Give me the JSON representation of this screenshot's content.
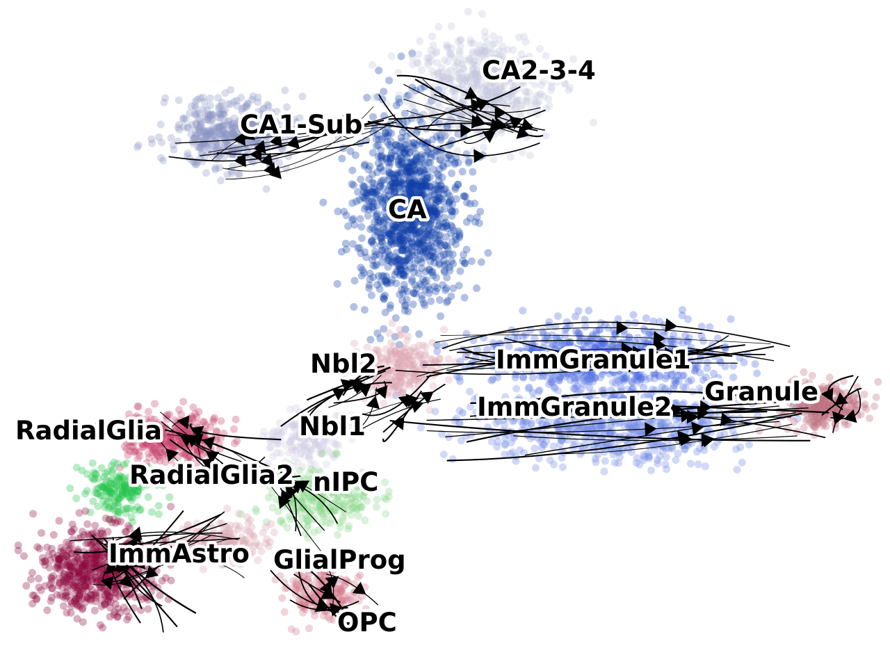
{
  "chart_data": {
    "type": "scatter",
    "description_kind": "embedding scatter with velocity streamlines",
    "grid": false,
    "axes_visible": false,
    "legend": "on data",
    "clusters": [
      {
        "name": "CA",
        "color": "#0e3fa8",
        "center": [
          590,
          300
        ],
        "spread": [
          70,
          120
        ],
        "n": 1100
      },
      {
        "name": "CA1-Sub",
        "color": "#8d96c4",
        "center": [
          330,
          190
        ],
        "spread": [
          80,
          45
        ],
        "n": 420
      },
      {
        "name": "CA2-3-4",
        "color": "#c3c6dd",
        "center": [
          690,
          130
        ],
        "spread": [
          90,
          70
        ],
        "n": 550
      },
      {
        "name": "ImmGranule1",
        "color": "#4a6be0",
        "center": [
          860,
          515
        ],
        "spread": [
          150,
          45
        ],
        "n": 700
      },
      {
        "name": "ImmGranule2",
        "color": "#6f88e6",
        "center": [
          880,
          610
        ],
        "spread": [
          170,
          50
        ],
        "n": 700
      },
      {
        "name": "Granule",
        "color": "#bf6f7e",
        "center": [
          1185,
          585
        ],
        "spread": [
          50,
          30
        ],
        "n": 260
      },
      {
        "name": "Nbl2",
        "color": "#dca4b0",
        "center": [
          570,
          530
        ],
        "spread": [
          55,
          40
        ],
        "n": 250
      },
      {
        "name": "Nbl1",
        "color": "#d0cee2",
        "center": [
          440,
          630
        ],
        "spread": [
          50,
          35
        ],
        "n": 180
      },
      {
        "name": "nIPC",
        "color": "#88d88a",
        "center": [
          460,
          720
        ],
        "spread": [
          70,
          40
        ],
        "n": 260
      },
      {
        "name": "RadialGlia",
        "color": "#c8456c",
        "center": [
          250,
          630
        ],
        "spread": [
          70,
          35
        ],
        "n": 330
      },
      {
        "name": "RadialGlia2",
        "color": "#22c44a",
        "center": [
          170,
          705
        ],
        "spread": [
          45,
          30
        ],
        "n": 170
      },
      {
        "name": "ImmAstro",
        "color": "#8c0a3e",
        "center": [
          140,
          820
        ],
        "spread": [
          75,
          55
        ],
        "n": 600
      },
      {
        "name": "GlialProg",
        "color": "#d9a4b2",
        "center": [
          320,
          780
        ],
        "spread": [
          60,
          30
        ],
        "n": 160
      },
      {
        "name": "OPC",
        "color": "#d47a8d",
        "center": [
          460,
          850
        ],
        "spread": [
          50,
          35
        ],
        "n": 210
      }
    ],
    "labels": [
      {
        "text": "CA2-3-4",
        "pos": [
          693,
          114
        ]
      },
      {
        "text": "CA1-Sub",
        "pos": [
          345,
          192
        ]
      },
      {
        "text": "CA",
        "pos": [
          558,
          314
        ]
      },
      {
        "text": "Nbl2",
        "pos": [
          446,
          536
        ]
      },
      {
        "text": "ImmGranule1",
        "pos": [
          713,
          530
        ]
      },
      {
        "text": "Granule",
        "pos": [
          1013,
          576
        ]
      },
      {
        "text": "ImmGranule2",
        "pos": [
          686,
          598
        ]
      },
      {
        "text": "RadialGlia",
        "pos": [
          22,
          632
        ]
      },
      {
        "text": "Nbl1",
        "pos": [
          430,
          626
        ]
      },
      {
        "text": "RadialGlia2",
        "pos": [
          186,
          696
        ]
      },
      {
        "text": "nIPC",
        "pos": [
          450,
          706
        ]
      },
      {
        "text": "ImmAstro",
        "pos": [
          156,
          809
        ]
      },
      {
        "text": "GlialProg",
        "pos": [
          393,
          818
        ]
      },
      {
        "text": "OPC",
        "pos": [
          485,
          908
        ]
      }
    ]
  }
}
